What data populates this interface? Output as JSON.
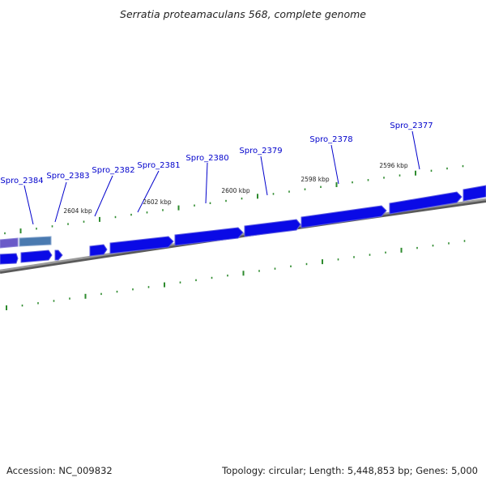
{
  "title": "Serratia proteamaculans 568, complete genome",
  "footer": {
    "accession": "Accession: NC_009832",
    "summary": "Topology: circular; Length: 5,448,853 bp; Genes: 5,000"
  },
  "colors": {
    "gene_forward": "#0a0ae6",
    "gene_forward_shadow": "#5a5ae0",
    "gene_selected": "#4a7ab0",
    "gene_purple": "#6a5ac8",
    "backbone": "#8a8a8a",
    "tick": "#2e8b2e",
    "label_line": "#0000cc",
    "label_text": "#0000cc"
  },
  "gene_labels": [
    "Spro_2384",
    "Spro_2383",
    "Spro_2382",
    "Spro_2381",
    "Spro_2380",
    "Spro_2379",
    "Spro_2378",
    "Spro_2377"
  ],
  "tick_labels": [
    "2604 kbp",
    "2602 kbp",
    "2600 kbp",
    "2598 kbp",
    "2596 kbp"
  ]
}
